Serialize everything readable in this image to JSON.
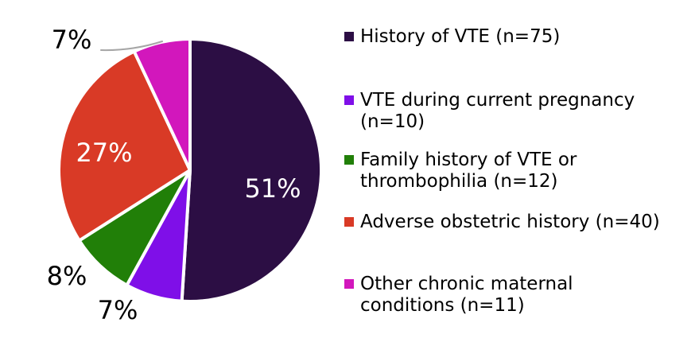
{
  "chart_data": {
    "type": "pie",
    "title": "",
    "legend_position": "right",
    "background_color": "#FFFFFF",
    "separator_color": "#FFFFFF",
    "leader_line_color": "#A6A6A6",
    "slices": [
      {
        "legend_label": "History of VTE (n=75)",
        "n": 75,
        "percent": 51,
        "percent_label": "51%",
        "color": "#2C0E44",
        "percent_label_color": "#FFFFFF",
        "label_placement": "inside"
      },
      {
        "legend_label": "VTE during current pregnancy\n(n=10)",
        "n": 10,
        "percent": 7,
        "percent_label": "7%",
        "color": "#7F0FE8",
        "percent_label_color": "#000000",
        "label_placement": "outside"
      },
      {
        "legend_label": "Family history of VTE or\nthrombophilia (n=12)",
        "n": 12,
        "percent": 8,
        "percent_label": "8%",
        "color": "#217F08",
        "percent_label_color": "#000000",
        "label_placement": "outside"
      },
      {
        "legend_label": "Adverse obstetric history (n=40)",
        "n": 40,
        "percent": 27,
        "percent_label": "27%",
        "color": "#D93A26",
        "percent_label_color": "#FFFFFF",
        "label_placement": "inside"
      },
      {
        "legend_label": "Other chronic maternal\nconditions (n=11)",
        "n": 11,
        "percent": 7,
        "percent_label": "7%",
        "color": "#D217BC",
        "percent_label_color": "#000000",
        "label_placement": "outside-with-leader"
      }
    ]
  }
}
